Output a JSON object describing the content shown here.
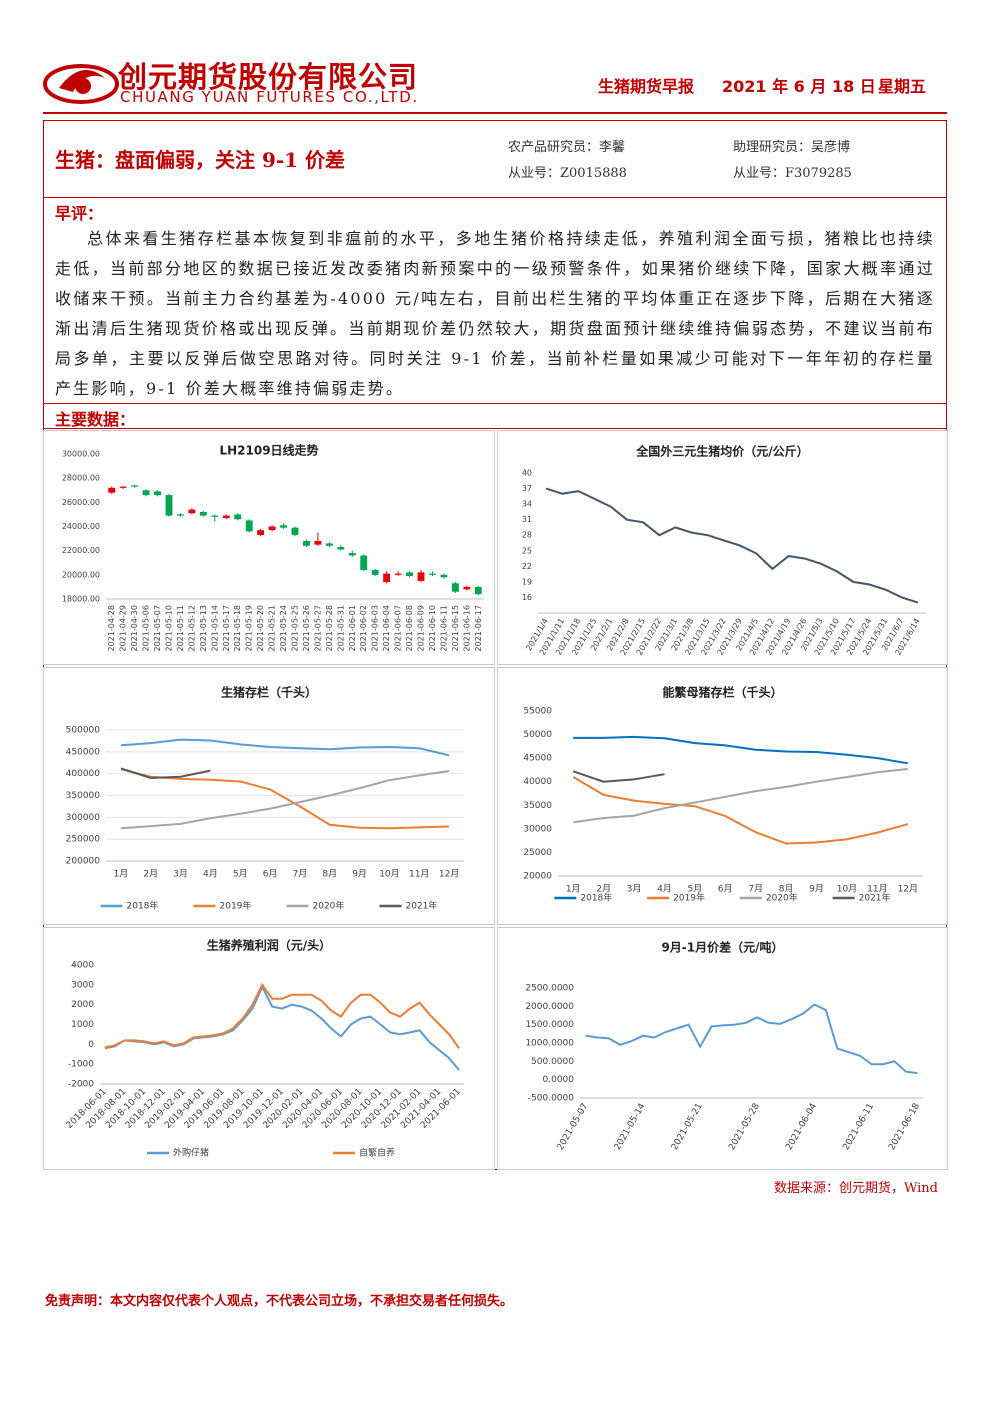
{
  "header": {
    "company": "创元期货股份有限公司",
    "company_en": "CHUANG YUAN FUTURES CO.,LTD.",
    "report": "生猪期货早报",
    "date": "2021 年 6 月 18 日",
    "weekday": "星期五"
  },
  "headline": "生猪：盘面偏弱，关注 9-1 价差",
  "analysts": [
    {
      "role": "农产品研究员：李馨",
      "license": "从业号：Z0015888"
    },
    {
      "role": "助理研究员：吴彦博",
      "license": "从业号：F3079285"
    }
  ],
  "comment": {
    "heading": "早评：",
    "text": "总体来看生猪存栏基本恢复到非瘟前的水平，多地生猪价格持续走低，养殖利润全面亏损，猪粮比也持续走低，当前部分地区的数据已接近发改委猪肉新预案中的一级预警条件，如果猪价继续下降，国家大概率通过收储来干预。当前主力合约基差为-4000 元/吨左右，目前出栏生猪的平均体重正在逐步下降，后期在大猪逐渐出清后生猪现货价格或出现反弹。当前期现价差仍然较大，期货盘面预计继续维持偏弱态势，不建议当前布局多单，主要以反弹后做空思路对待。同时关注 9-1 价差，当前补栏量如果减少可能对下一年年初的存栏量产生影响，9-1 价差大概率维持偏弱走势。"
  },
  "data_heading": "主要数据：",
  "chart_data": [
    {
      "type": "candlestick",
      "title": "LH2109日线走势",
      "categories": [
        "2021-04-28",
        "2021-04-29",
        "2021-04-30",
        "2021-05-06",
        "2021-05-07",
        "2021-05-10",
        "2021-05-11",
        "2021-05-12",
        "2021-05-13",
        "2021-05-14",
        "2021-05-17",
        "2021-05-18",
        "2021-05-19",
        "2021-05-20",
        "2021-05-21",
        "2021-05-24",
        "2021-05-25",
        "2021-05-26",
        "2021-05-27",
        "2021-05-28",
        "2021-05-31",
        "2021-06-01",
        "2021-06-02",
        "2021-06-03",
        "2021-06-04",
        "2021-06-07",
        "2021-06-08",
        "2021-06-09",
        "2021-06-10",
        "2021-06-11",
        "2021-06-15",
        "2021-06-16",
        "2021-06-17"
      ],
      "open": [
        26800,
        27200,
        27400,
        27000,
        26900,
        26600,
        25000,
        25100,
        25200,
        24900,
        24700,
        25000,
        24500,
        23300,
        23700,
        24100,
        23900,
        22800,
        22500,
        22600,
        22300,
        21800,
        21600,
        20400,
        19400,
        20000,
        20200,
        19500,
        20100,
        20000,
        19300,
        18800,
        19000
      ],
      "high": [
        27300,
        27350,
        27450,
        27100,
        27000,
        26700,
        25100,
        25500,
        25300,
        25000,
        25000,
        25100,
        24600,
        23800,
        24100,
        24300,
        24000,
        22900,
        23500,
        22700,
        22500,
        22000,
        21700,
        20500,
        20300,
        20300,
        20300,
        20400,
        20300,
        20100,
        19400,
        19100,
        19100
      ],
      "low": [
        26700,
        27100,
        27200,
        26500,
        26500,
        24800,
        24800,
        25000,
        24800,
        24400,
        24600,
        24500,
        23500,
        23200,
        23600,
        23800,
        23200,
        22300,
        22400,
        22300,
        22000,
        21500,
        20300,
        19900,
        19300,
        19900,
        19800,
        19400,
        19900,
        19700,
        18500,
        18700,
        18300
      ],
      "close": [
        27200,
        27300,
        27300,
        26600,
        26600,
        24900,
        24900,
        25400,
        24900,
        24800,
        24900,
        24600,
        23600,
        23700,
        24000,
        23900,
        23300,
        22400,
        22800,
        22400,
        22100,
        21600,
        20400,
        20000,
        20100,
        20100,
        19900,
        20200,
        20000,
        19800,
        18600,
        19000,
        18400
      ],
      "up_color": "#e60000",
      "down_color": "#00a651",
      "ylim": [
        18000,
        30000
      ],
      "yticks": [
        {
          "value": 18000,
          "label": "18000.00"
        },
        {
          "value": 20000,
          "label": "20000.00"
        },
        {
          "value": 22000,
          "label": "22000.00"
        },
        {
          "value": 24000,
          "label": "24000.00"
        },
        {
          "value": 26000,
          "label": "26000.00"
        },
        {
          "value": 28000,
          "label": "28000.00"
        },
        {
          "value": 30000,
          "label": "30000.00"
        }
      ],
      "grid": false
    },
    {
      "type": "line",
      "title": "全国外三元生猪均价（元/公斤）",
      "categories": [
        "2021/1/4",
        "2021/1/11",
        "2021/1/18",
        "2021/1/25",
        "2021/2/1",
        "2021/2/8",
        "2021/2/15",
        "2021/2/22",
        "2021/3/1",
        "2021/3/8",
        "2021/3/15",
        "2021/3/22",
        "2021/3/29",
        "2021/4/5",
        "2021/4/12",
        "2021/4/19",
        "2021/4/26",
        "2021/5/3",
        "2021/5/10",
        "2021/5/17",
        "2021/5/24",
        "2021/5/31",
        "2021/6/7",
        "2021/6/14"
      ],
      "values": [
        37,
        36,
        36.5,
        35,
        33.5,
        31,
        30.5,
        28,
        29.5,
        28.5,
        28,
        27,
        26,
        24.5,
        21.5,
        24,
        23.5,
        22.5,
        21,
        19,
        18.5,
        17.5,
        16,
        15
      ],
      "color": "#44546a",
      "ylim": [
        13,
        40
      ],
      "yticks": [
        16,
        19,
        22,
        25,
        28,
        31,
        34,
        37,
        40
      ],
      "grid": false
    },
    {
      "type": "line",
      "title": "生猪存栏（千头）",
      "categories": [
        "1月",
        "2月",
        "3月",
        "4月",
        "5月",
        "6月",
        "7月",
        "8月",
        "9月",
        "10月",
        "11月",
        "12月"
      ],
      "series": [
        {
          "name": "2018年",
          "color": "#5b9bd5",
          "values": [
            465000,
            470000,
            478000,
            476000,
            467000,
            461000,
            458000,
            456000,
            460000,
            461000,
            458000,
            442000
          ]
        },
        {
          "name": "2019年",
          "color": "#ed7d31",
          "values": [
            410000,
            393000,
            388000,
            386000,
            382000,
            364000,
            325000,
            283000,
            276000,
            275000,
            277000,
            279000
          ]
        },
        {
          "name": "2020年",
          "color": "#a5a5a5",
          "values": [
            275000,
            280000,
            285000,
            298000,
            308000,
            320000,
            335000,
            350000,
            367000,
            385000,
            396000,
            406000
          ]
        },
        {
          "name": "2021年",
          "color": "#595959",
          "values": [
            412000,
            390000,
            393000,
            407000,
            null,
            null,
            null,
            null,
            null,
            null,
            null,
            null
          ]
        }
      ],
      "ylim": [
        200000,
        500000
      ],
      "yticks": [
        200000,
        250000,
        300000,
        350000,
        400000,
        450000,
        500000
      ],
      "grid": true,
      "legend": "bottom"
    },
    {
      "type": "line",
      "title": "能繁母猪存栏（千头）",
      "categories": [
        "1月",
        "2月",
        "3月",
        "4月",
        "5月",
        "6月",
        "7月",
        "8月",
        "9月",
        "10月",
        "11月",
        "12月"
      ],
      "series": [
        {
          "name": "2018年",
          "color": "#0070c0",
          "values": [
            49300,
            49300,
            49500,
            49200,
            48200,
            47700,
            46800,
            46400,
            46300,
            45700,
            45000,
            43900
          ]
        },
        {
          "name": "2019年",
          "color": "#ed7d31",
          "values": [
            41000,
            37200,
            36000,
            35300,
            34800,
            32700,
            29300,
            26900,
            27100,
            27800,
            29200,
            31000
          ]
        },
        {
          "name": "2020年",
          "color": "#a5a5a5",
          "values": [
            31400,
            32300,
            32800,
            34400,
            35600,
            36800,
            38000,
            38900,
            40000,
            41000,
            42000,
            42700
          ]
        },
        {
          "name": "2021年",
          "color": "#595959",
          "values": [
            42200,
            40000,
            40500,
            41600,
            null,
            null,
            null,
            null,
            null,
            null,
            null,
            null
          ]
        }
      ],
      "ylim": [
        20000,
        55000
      ],
      "yticks": [
        20000,
        25000,
        30000,
        35000,
        40000,
        45000,
        50000,
        55000
      ],
      "grid": false,
      "legend": "bottom"
    },
    {
      "type": "line",
      "title": "生猪养殖利润（元/头）",
      "categories": [
        "2018-06-01",
        null,
        "2018-08-01",
        null,
        "2018-10-01",
        null,
        "2018-12-01",
        null,
        "2019-02-01",
        null,
        "2019-04-01",
        null,
        "2019-06-01",
        null,
        "2019-08-01",
        null,
        "2019-10-01",
        null,
        "2019-12-01",
        null,
        "2020-02-01",
        null,
        "2020-04-01",
        null,
        "2020-06-01",
        null,
        "2020-08-01",
        null,
        "2020-10-01",
        null,
        "2020-12-01",
        null,
        "2021-02-01",
        null,
        "2021-04-01",
        null,
        "2021-06-01"
      ],
      "series": [
        {
          "name": "外购仔猪",
          "color": "#5b9bd5",
          "values": [
            -200,
            -100,
            200,
            150,
            100,
            0,
            100,
            -100,
            0,
            300,
            350,
            400,
            500,
            700,
            1200,
            1800,
            2900,
            1900,
            1800,
            2000,
            1900,
            1700,
            1300,
            800,
            400,
            1000,
            1300,
            1400,
            1000,
            600,
            500,
            600,
            700,
            100,
            -300,
            -700,
            -1300
          ]
        },
        {
          "name": "自繁自养",
          "color": "#ed7d31",
          "values": [
            -150,
            -50,
            200,
            200,
            150,
            50,
            150,
            -50,
            50,
            350,
            400,
            450,
            550,
            800,
            1300,
            2000,
            3000,
            2300,
            2300,
            2500,
            2500,
            2500,
            2200,
            1700,
            1400,
            2100,
            2500,
            2500,
            2100,
            1600,
            1400,
            1800,
            2100,
            1500,
            1000,
            500,
            -200
          ]
        }
      ],
      "ylim": [
        -2000,
        4000
      ],
      "yticks": [
        -2000,
        -1000,
        0,
        1000,
        2000,
        3000,
        4000
      ],
      "grid": false,
      "legend": "bottom"
    },
    {
      "type": "line",
      "title": "9月-1月价差（元/吨）",
      "categories": [
        "2021-05-07",
        null,
        null,
        null,
        null,
        "2021-05-14",
        null,
        null,
        null,
        null,
        "2021-05-21",
        null,
        null,
        null,
        null,
        "2021-05-28",
        null,
        null,
        null,
        null,
        "2021-06-04",
        null,
        null,
        null,
        null,
        "2021-06-11",
        null,
        null,
        null,
        "2021-06-18"
      ],
      "values": [
        1200,
        1150,
        1130,
        950,
        1050,
        1200,
        1150,
        1300,
        1400,
        1500,
        900,
        1450,
        1480,
        1500,
        1550,
        1700,
        1550,
        1520,
        1650,
        1800,
        2050,
        1900,
        850,
        750,
        650,
        420,
        420,
        500,
        220,
        180
      ],
      "color": "#5b9bd5",
      "ylim": [
        -500,
        2500
      ],
      "yticks": [
        {
          "value": -500,
          "label": "-500.0000"
        },
        {
          "value": 0,
          "label": "0.0000"
        },
        {
          "value": 500,
          "label": "500.0000"
        },
        {
          "value": 1000,
          "label": "1000.0000"
        },
        {
          "value": 1500,
          "label": "1500.0000"
        },
        {
          "value": 2000,
          "label": "2000.0000"
        },
        {
          "value": 2500,
          "label": "2500.0000"
        }
      ],
      "grid": false
    }
  ],
  "source": "数据来源：创元期货，Wind",
  "disclaimer": "免责声明：本文内容仅代表个人观点，不代表公司立场，不承担交易者任何损失。"
}
